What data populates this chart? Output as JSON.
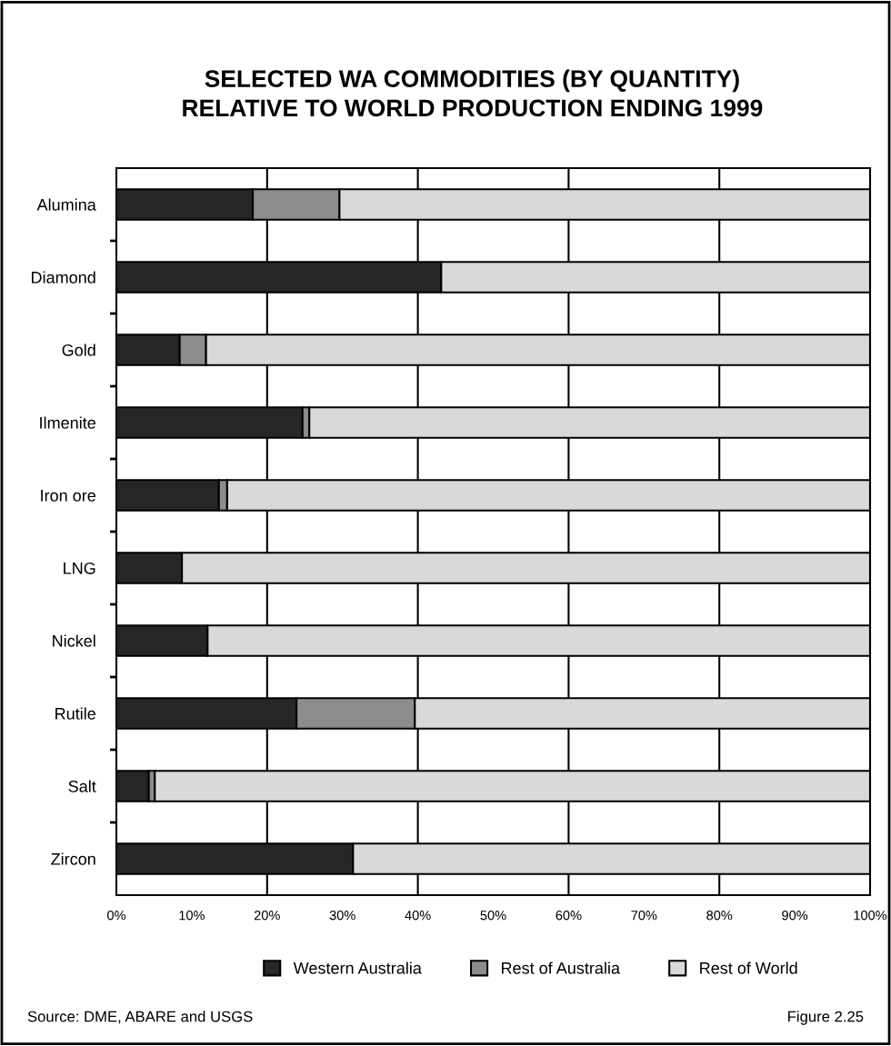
{
  "chart_data": {
    "type": "bar",
    "orientation": "horizontal",
    "stacked": true,
    "title": "SELECTED WA COMMODITIES (BY QUANTITY)\nRELATIVE TO WORLD PRODUCTION ENDING 1999",
    "categories": [
      "Alumina",
      "Diamond",
      "Gold",
      "Ilmenite",
      "Iron ore",
      "LNG",
      "Nickel",
      "Rutile",
      "Salt",
      "Zircon"
    ],
    "series": [
      {
        "name": "Western Australia",
        "color": "#262626",
        "values": [
          18.1,
          43.1,
          8.4,
          24.7,
          13.6,
          8.7,
          12.1,
          23.9,
          4.3,
          31.4
        ]
      },
      {
        "name": "Rest of Australia",
        "color": "#8c8c8c",
        "values": [
          11.5,
          0,
          3.5,
          0.9,
          1.1,
          0,
          0,
          15.7,
          0.8,
          0
        ]
      },
      {
        "name": "Rest of World",
        "color": "#d9d9d9",
        "values": [
          70.4,
          56.9,
          88.1,
          74.4,
          85.3,
          91.3,
          87.9,
          60.4,
          94.9,
          68.6
        ]
      }
    ],
    "xlim": [
      0,
      100
    ],
    "xticks": [
      {
        "value": 0,
        "label": "0%"
      },
      {
        "value": 10,
        "label": "10%"
      },
      {
        "value": 20,
        "label": "20%"
      },
      {
        "value": 30,
        "label": "30%"
      },
      {
        "value": 40,
        "label": "40%"
      },
      {
        "value": 50,
        "label": "50%"
      },
      {
        "value": 60,
        "label": "60%"
      },
      {
        "value": 70,
        "label": "70%"
      },
      {
        "value": 80,
        "label": "80%"
      },
      {
        "value": 90,
        "label": "90%"
      },
      {
        "value": 100,
        "label": "100%"
      }
    ],
    "ref_lines": [
      {
        "axis": "x",
        "value": 20,
        "color": "#000000"
      },
      {
        "axis": "x",
        "value": 40,
        "color": "#000000"
      },
      {
        "axis": "x",
        "value": 60,
        "color": "#000000"
      },
      {
        "axis": "x",
        "value": 80,
        "color": "#000000"
      }
    ],
    "legend": "bottom",
    "annotations": [
      "Source: DME, ABARE and USGS",
      "Figure 2.25"
    ]
  }
}
